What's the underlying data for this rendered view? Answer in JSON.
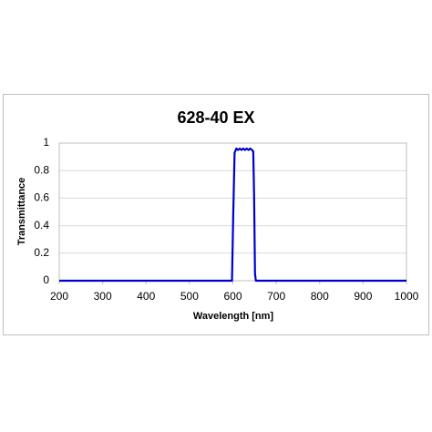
{
  "chart_data": {
    "type": "line",
    "title": "628-40 EX",
    "x_label": "Wavelength [nm]",
    "y_label": "Transmittance",
    "x": [
      200,
      598,
      601,
      604,
      608,
      612,
      616,
      620,
      624,
      628,
      632,
      636,
      640,
      644,
      647,
      649,
      651,
      653,
      1000
    ],
    "series": [
      {
        "name": "628-40 EX",
        "color": "#0000cc",
        "values": [
          0,
          0,
          0.5,
          0.93,
          0.96,
          0.95,
          0.96,
          0.95,
          0.96,
          0.95,
          0.96,
          0.95,
          0.96,
          0.95,
          0.94,
          0.6,
          0.05,
          0,
          0
        ]
      }
    ],
    "xlim": [
      200,
      1000
    ],
    "xticks": [
      200,
      300,
      400,
      500,
      600,
      700,
      800,
      900,
      1000
    ],
    "ylim": [
      0,
      1
    ],
    "yticks": [
      0,
      0.2,
      0.4,
      0.6,
      0.8,
      1
    ],
    "grid": true
  }
}
